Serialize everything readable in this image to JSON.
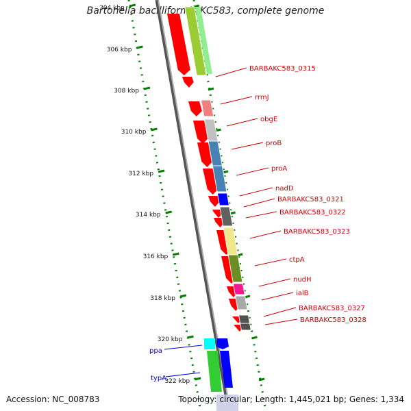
{
  "title": "Bartonella bacilliformis KC583, complete genome",
  "footer": {
    "accession": "Accession: NC_008783",
    "topology": "Topology: circular; Length: 1,445,021 bp; Genes: 1,334"
  },
  "scale_labels": [
    "304 kbp",
    "306 kbp",
    "308 kbp",
    "310 kbp",
    "312 kbp",
    "314 kbp",
    "316 kbp",
    "318 kbp",
    "320 kbp",
    "322 kbp"
  ],
  "genes_right": [
    {
      "name": "BARBAKC583_0315",
      "color": "#9acd32"
    },
    {
      "name": "rrmJ",
      "color": "#f08080"
    },
    {
      "name": "obgE",
      "color": "#c0c0c0"
    },
    {
      "name": "proB",
      "color": "#4682b4"
    },
    {
      "name": "proA",
      "color": "#4682b4"
    },
    {
      "name": "nadD",
      "color": "#0000ff"
    },
    {
      "name": "BARBAKC583_0321",
      "color": "#606060"
    },
    {
      "name": "BARBAKC583_0322",
      "color": "#606060"
    },
    {
      "name": "BARBAKC583_0323",
      "color": "#f0e68c"
    },
    {
      "name": "ctpA",
      "color": "#6b8e23"
    },
    {
      "name": "nudH",
      "color": "#ff1493"
    },
    {
      "name": "ialB",
      "color": "#a9a9a9"
    },
    {
      "name": "BARBAKC583_0327",
      "color": "#505050"
    },
    {
      "name": "BARBAKC583_0328",
      "color": "#505050"
    }
  ],
  "genes_left": [
    {
      "name": "ppa",
      "color": "#00ffff"
    },
    {
      "name": "typA",
      "color": "#32cd32"
    }
  ],
  "colors": {
    "red_feature": "#ff0000",
    "label_red": "#cc0000",
    "label_blue": "#0000cc",
    "scale_green": "#008000",
    "backbone": "#909090"
  }
}
